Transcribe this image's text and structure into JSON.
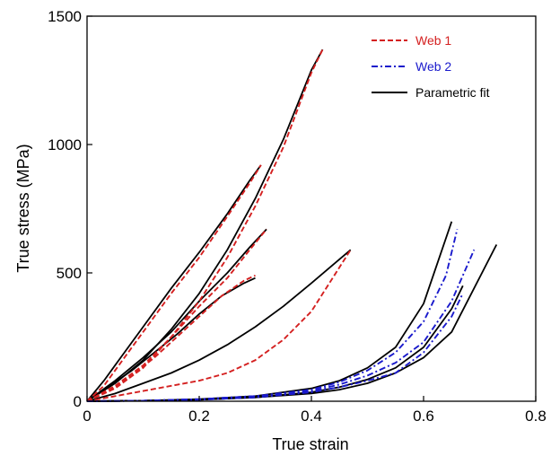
{
  "chart_data": {
    "type": "line",
    "title": "",
    "xlabel": "True strain",
    "ylabel": "True stress (MPa)",
    "xlim": [
      0,
      0.8
    ],
    "ylim": [
      0,
      1500
    ],
    "xticks": [
      "0",
      "0.2",
      "0.4",
      "0.6",
      "0.8"
    ],
    "yticks": [
      "0",
      "500",
      "1000",
      "1500"
    ],
    "grid": false,
    "legend_position": "top-right",
    "legend": [
      {
        "label": "Web 1",
        "color": "#d42020",
        "style": "dashed"
      },
      {
        "label": "Web 2",
        "color": "#1a1acc",
        "style": "dashdot"
      },
      {
        "label": "Parametric fit",
        "color": "#000000",
        "style": "solid"
      }
    ],
    "series": [
      {
        "group": "Web 1",
        "x": [
          0,
          0.03,
          0.06,
          0.1,
          0.15,
          0.2,
          0.25,
          0.29,
          0.31
        ],
        "y": [
          0,
          60,
          150,
          270,
          420,
          560,
          720,
          850,
          920
        ]
      },
      {
        "group": "Web 1",
        "x": [
          0,
          0.04,
          0.08,
          0.12,
          0.16,
          0.2,
          0.24,
          0.28,
          0.3
        ],
        "y": [
          0,
          40,
          100,
          170,
          250,
          330,
          410,
          470,
          490
        ]
      },
      {
        "group": "Web 1",
        "x": [
          0,
          0.05,
          0.1,
          0.15,
          0.2,
          0.25,
          0.29,
          0.32
        ],
        "y": [
          0,
          60,
          140,
          250,
          370,
          480,
          590,
          670
        ]
      },
      {
        "group": "Web 1",
        "x": [
          0,
          0.05,
          0.1,
          0.15,
          0.2,
          0.25,
          0.3,
          0.35,
          0.4,
          0.42
        ],
        "y": [
          0,
          50,
          130,
          250,
          390,
          560,
          760,
          990,
          1280,
          1370
        ]
      },
      {
        "group": "Web 1",
        "x": [
          0,
          0.05,
          0.1,
          0.15,
          0.2,
          0.25,
          0.3,
          0.35,
          0.4,
          0.47
        ],
        "y": [
          0,
          20,
          40,
          60,
          80,
          110,
          160,
          240,
          350,
          590
        ]
      },
      {
        "group": "Parametric fit",
        "x": [
          0,
          0.03,
          0.06,
          0.1,
          0.15,
          0.2,
          0.25,
          0.29,
          0.31
        ],
        "y": [
          0,
          80,
          170,
          290,
          440,
          580,
          730,
          860,
          920
        ]
      },
      {
        "group": "Parametric fit",
        "x": [
          0,
          0.04,
          0.08,
          0.12,
          0.16,
          0.2,
          0.24,
          0.28,
          0.3
        ],
        "y": [
          0,
          60,
          120,
          190,
          260,
          340,
          410,
          460,
          480
        ]
      },
      {
        "group": "Parametric fit",
        "x": [
          0,
          0.05,
          0.1,
          0.15,
          0.2,
          0.25,
          0.29,
          0.32
        ],
        "y": [
          0,
          80,
          170,
          270,
          390,
          500,
          600,
          670
        ]
      },
      {
        "group": "Parametric fit",
        "x": [
          0,
          0.05,
          0.1,
          0.15,
          0.2,
          0.25,
          0.3,
          0.35,
          0.4,
          0.42
        ],
        "y": [
          0,
          70,
          160,
          280,
          420,
          590,
          790,
          1020,
          1290,
          1370
        ]
      },
      {
        "group": "Parametric fit",
        "x": [
          0,
          0.05,
          0.1,
          0.15,
          0.2,
          0.25,
          0.3,
          0.35,
          0.4,
          0.47
        ],
        "y": [
          0,
          30,
          70,
          110,
          160,
          220,
          290,
          370,
          460,
          590
        ]
      },
      {
        "group": "Web 2",
        "x": [
          0,
          0.1,
          0.2,
          0.3,
          0.4,
          0.45,
          0.5,
          0.55,
          0.6,
          0.64,
          0.66
        ],
        "y": [
          0,
          2,
          8,
          20,
          45,
          75,
          120,
          190,
          310,
          490,
          670
        ]
      },
      {
        "group": "Web 2",
        "x": [
          0,
          0.1,
          0.2,
          0.3,
          0.4,
          0.45,
          0.5,
          0.55,
          0.6,
          0.65,
          0.69
        ],
        "y": [
          0,
          2,
          8,
          20,
          40,
          65,
          100,
          150,
          230,
          390,
          590
        ]
      },
      {
        "group": "Web 2",
        "x": [
          0,
          0.1,
          0.2,
          0.3,
          0.4,
          0.45,
          0.5,
          0.55,
          0.6,
          0.65,
          0.67
        ],
        "y": [
          0,
          2,
          6,
          15,
          35,
          55,
          80,
          110,
          190,
          330,
          420
        ]
      },
      {
        "group": "Parametric fit",
        "x": [
          0,
          0.1,
          0.2,
          0.3,
          0.4,
          0.45,
          0.5,
          0.55,
          0.6,
          0.65
        ],
        "y": [
          0,
          2,
          8,
          20,
          50,
          80,
          130,
          210,
          380,
          700
        ]
      },
      {
        "group": "Parametric fit",
        "x": [
          0,
          0.1,
          0.2,
          0.3,
          0.4,
          0.45,
          0.5,
          0.55,
          0.6,
          0.65,
          0.73
        ],
        "y": [
          0,
          2,
          6,
          15,
          30,
          45,
          70,
          110,
          170,
          270,
          610
        ]
      },
      {
        "group": "Parametric fit",
        "x": [
          0,
          0.1,
          0.2,
          0.3,
          0.4,
          0.45,
          0.5,
          0.55,
          0.6,
          0.65,
          0.67
        ],
        "y": [
          0,
          2,
          6,
          15,
          35,
          55,
          85,
          130,
          210,
          360,
          450
        ]
      }
    ]
  }
}
